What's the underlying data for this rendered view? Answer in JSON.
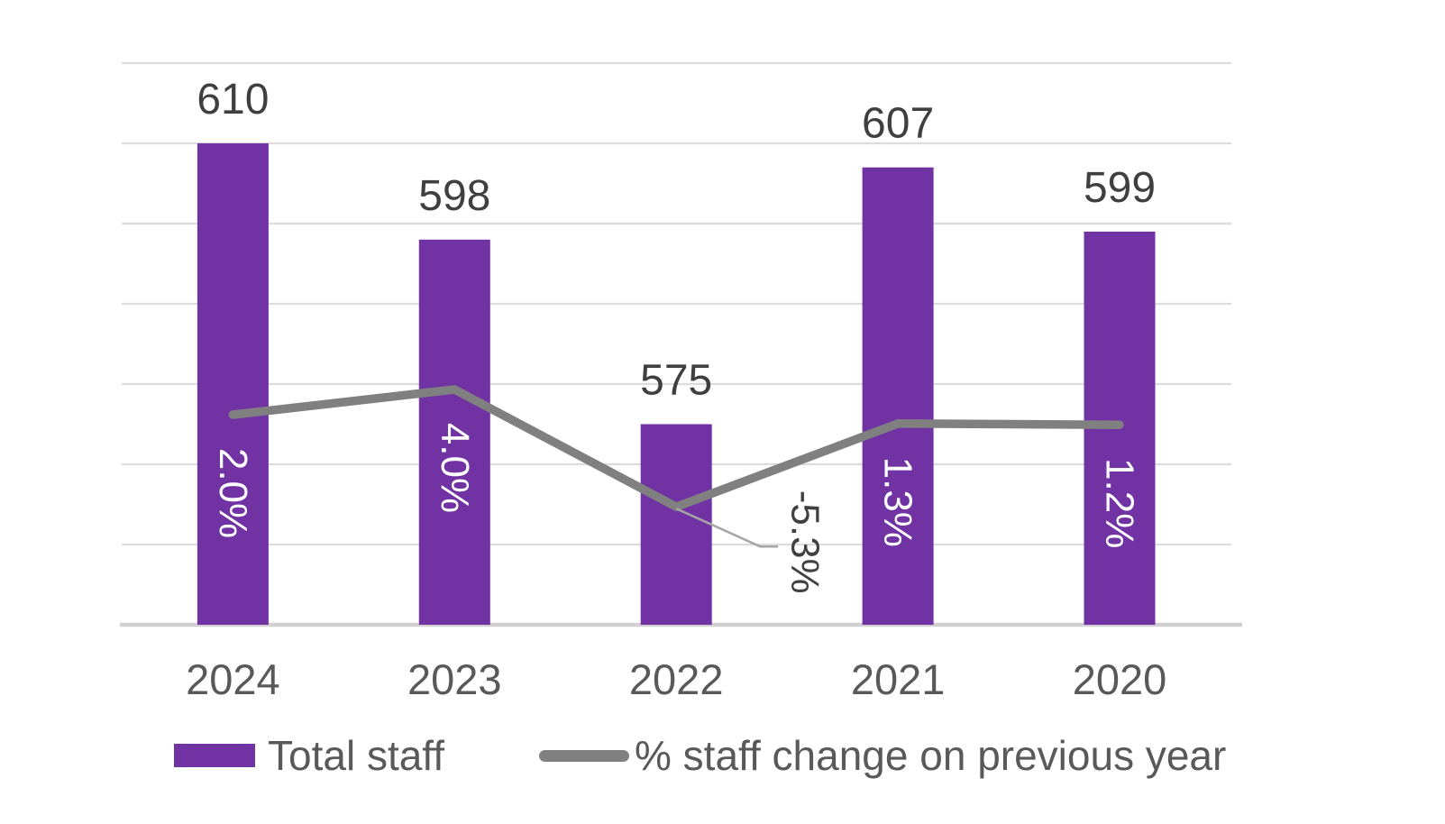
{
  "chart_data": {
    "type": "combo",
    "categories": [
      "2024",
      "2023",
      "2022",
      "2021",
      "2020"
    ],
    "series": [
      {
        "name": "Total staff",
        "type": "bar",
        "values": [
          610,
          598,
          575,
          607,
          599
        ],
        "labels": [
          "610",
          "598",
          "575",
          "607",
          "599"
        ],
        "color": "#7132A3"
      },
      {
        "name": "% staff change on previous year",
        "type": "line",
        "values": [
          2.0,
          4.0,
          -5.3,
          1.3,
          1.2
        ],
        "labels": [
          "2.0%",
          "4.0%",
          "-5.3%",
          "1.3%",
          "1.2%"
        ],
        "color": "#808080"
      }
    ],
    "bar_axis": {
      "min": 550,
      "max": 620,
      "gridline_step": 10,
      "labels_visible": false
    },
    "grid": true,
    "legend_position": "bottom",
    "callout": {
      "category": "2022",
      "label": "-5.3%"
    }
  },
  "legend": {
    "bar_label": "Total staff",
    "line_label": "% staff change on previous year"
  },
  "colors": {
    "bar": "#7132A3",
    "line": "#808080",
    "gridline": "#DCDCDC",
    "axis_line": "#D2D0D0",
    "bar_value_label": "#3F3F3F",
    "inside_label": "#FFFFFF",
    "callout_label": "#404040",
    "leader_line": "#A6A6A6",
    "axis_text": "#595959"
  }
}
